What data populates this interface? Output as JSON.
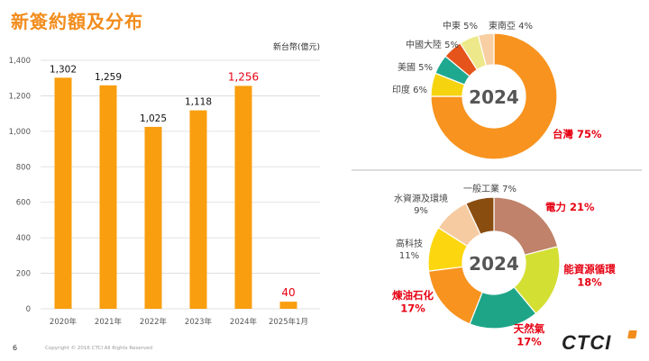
{
  "title": "新簽約額及分布",
  "unit_label": "新台幣(億元)",
  "footer": {
    "page": "6",
    "copyright": "Copyright © 2016 CTCI All Rights Reserved"
  },
  "logo": "CTCI",
  "colors": {
    "accent": "#f28c1c",
    "bar": "#f99e0e",
    "highlight": "#e60012"
  },
  "chart_data": [
    {
      "type": "bar",
      "categories": [
        "2020年",
        "2021年",
        "2022年",
        "2023年",
        "2024年",
        "2025年1月"
      ],
      "values": [
        1302,
        1259,
        1025,
        1118,
        1256,
        40
      ],
      "value_labels": [
        "1,302",
        "1,259",
        "1,025",
        "1,118",
        "1,256",
        "40"
      ],
      "highlighted": [
        false,
        false,
        false,
        false,
        true,
        true
      ],
      "ylim": [
        0,
        1400
      ],
      "yticks": [
        0,
        200,
        400,
        600,
        800,
        1000,
        1200,
        1400
      ],
      "ytick_labels": [
        "0",
        "200",
        "400",
        "600",
        "800",
        "1,000",
        "1,200",
        "1,400"
      ],
      "grid": true
    },
    {
      "type": "pie",
      "center_text": "2024",
      "slices": [
        {
          "label": "台灣 75%",
          "value": 75,
          "color": "#f7931e",
          "highlight": true
        },
        {
          "label": "印度 6%",
          "value": 6,
          "color": "#f5d40f",
          "highlight": false
        },
        {
          "label": "美國 5%",
          "value": 5,
          "color": "#1fa890",
          "highlight": false
        },
        {
          "label": "中國大陸 5%",
          "value": 5,
          "color": "#e5541b",
          "highlight": false
        },
        {
          "label": "中東 5%",
          "value": 5,
          "color": "#ede98a",
          "highlight": false
        },
        {
          "label": "東南亞 4%",
          "value": 4,
          "color": "#f7cfa3",
          "highlight": false
        }
      ]
    },
    {
      "type": "pie",
      "center_text": "2024",
      "slices": [
        {
          "label": "電力 21%",
          "value": 21,
          "color": "#c0826a",
          "highlight": true
        },
        {
          "label": "能資源循環 18%",
          "value": 18,
          "color": "#d4df33",
          "highlight": true
        },
        {
          "label": "天然氣 17%",
          "value": 17,
          "color": "#1ea588",
          "highlight": true
        },
        {
          "label": "煉油石化 17%",
          "value": 17,
          "color": "#f7931e",
          "highlight": true
        },
        {
          "label": "高科技 11%",
          "value": 11,
          "color": "#fcd70f",
          "highlight": false
        },
        {
          "label": "水資源及環境 9%",
          "value": 9,
          "color": "#f6cba2",
          "highlight": false
        },
        {
          "label": "一般工業 7%",
          "value": 7,
          "color": "#8a4d10",
          "highlight": false
        }
      ]
    }
  ]
}
